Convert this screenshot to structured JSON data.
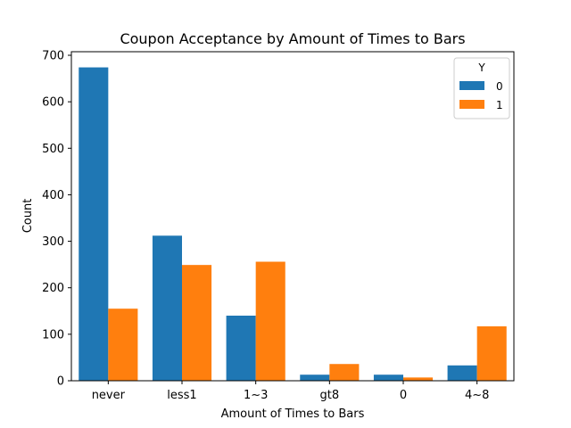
{
  "chart_data": {
    "type": "bar",
    "title": "Coupon Acceptance by Amount of Times to Bars",
    "xlabel": "Amount of Times to Bars",
    "ylabel": "Count",
    "categories": [
      "never",
      "less1",
      "1~3",
      "gt8",
      "0",
      "4~8"
    ],
    "ylim": [
      0,
      700
    ],
    "yticks": [
      0,
      100,
      200,
      300,
      400,
      500,
      600,
      700
    ],
    "series": [
      {
        "name": "0",
        "values": [
          674,
          312,
          140,
          13,
          13,
          33
        ],
        "color": "#1f77b4"
      },
      {
        "name": "1",
        "values": [
          155,
          249,
          256,
          36,
          7,
          117
        ],
        "color": "#ff7f0e"
      }
    ],
    "legend": {
      "title": "Y",
      "position": "top-right"
    },
    "grid": false
  }
}
